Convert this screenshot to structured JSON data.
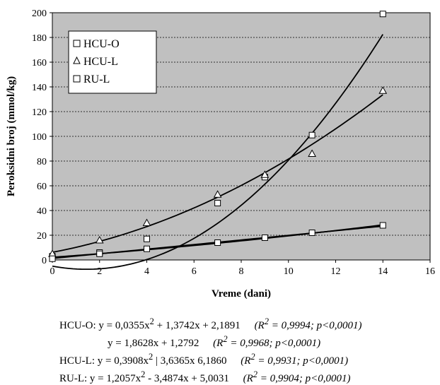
{
  "chart_data": {
    "type": "scatter",
    "xlabel": "Vreme (dani)",
    "ylabel": "Peroksidni broj (mmol/kg)",
    "xlim": [
      0,
      16
    ],
    "ylim": [
      0,
      200
    ],
    "xticks": [
      0,
      2,
      4,
      6,
      8,
      10,
      12,
      14,
      16
    ],
    "yticks": [
      0,
      20,
      40,
      60,
      80,
      100,
      120,
      140,
      160,
      180,
      200
    ],
    "grid": "horizontal-dashed",
    "background": "#c0c0c0",
    "legend_position": "top-left",
    "series": [
      {
        "name": "HCU-O",
        "marker": "square",
        "points": [
          [
            0,
            3
          ],
          [
            2,
            6
          ],
          [
            4,
            17
          ],
          [
            7,
            46
          ],
          [
            9,
            67
          ],
          [
            11,
            101
          ],
          [
            14,
            199
          ]
        ],
        "fit": {
          "a": 0.0355,
          "b": 1.3742,
          "c": 2.1891
        }
      },
      {
        "name": "HCU-L",
        "marker": "triangle",
        "points": [
          [
            0,
            5
          ],
          [
            2,
            16
          ],
          [
            4,
            30
          ],
          [
            7,
            53
          ],
          [
            9,
            69
          ],
          [
            11,
            86
          ],
          [
            14,
            137
          ]
        ],
        "fit": {
          "a": 0.3908,
          "b": 3.6365,
          "c": 6.186
        }
      },
      {
        "name": "RU-L",
        "marker": "square",
        "points": [
          [
            0,
            1
          ],
          [
            2,
            5
          ],
          [
            4,
            9
          ],
          [
            7,
            14
          ],
          [
            9,
            18
          ],
          [
            11,
            22
          ],
          [
            14,
            28
          ]
        ],
        "fit": {
          "a": 0,
          "b": 1.8628,
          "c": 1.2792
        }
      }
    ],
    "extra_fit": {
      "a": 1.2057,
      "b": -3.4874,
      "c": 5.0031,
      "sign": -1
    }
  },
  "equations": [
    {
      "label": "HCU-O:",
      "formula": "y = 0,0355x",
      "exp": "2",
      "rest": " + 1,3742x + 2,1891",
      "r2": "= 0,9994; p<0,0001)"
    },
    {
      "label": "",
      "formula": "y = 1,8628x + 1,2792",
      "exp": "",
      "rest": "",
      "r2": "= 0,9968; p<0,0001)"
    },
    {
      "label": "HCU-L:",
      "formula": "y = 0,3908x",
      "exp": "2",
      "rest": " | 3,6365x   6,1860",
      "r2": "= 0,9931; p<0,0001)"
    },
    {
      "label": "RU-L:",
      "formula": "y = 1,2057x",
      "exp": "2",
      "rest": " - 3,4874x + 5,0031",
      "r2": "= 0,9904; p<0,0001)"
    }
  ]
}
